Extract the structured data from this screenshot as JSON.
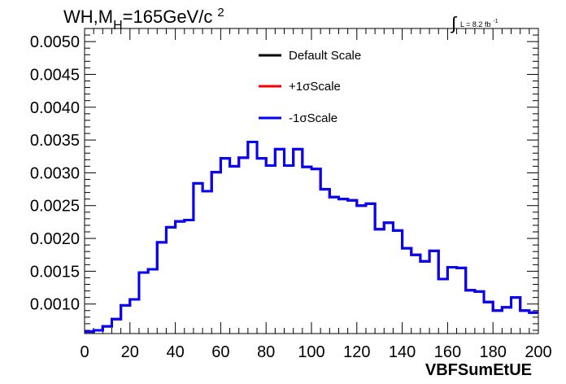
{
  "chart_data": {
    "type": "line",
    "title_main": "WH,M",
    "title_sub": "H",
    "title_tail": "=165GeV/c",
    "title_sup": "2",
    "lumi": {
      "integral": "∫",
      "text": "L = 8.2 fb",
      "sup": "-1"
    },
    "xlabel": "VBFSumEtUE",
    "ylabel": "",
    "xlim": [
      0,
      200
    ],
    "ylim": [
      0.00055,
      0.0052
    ],
    "xticks": [
      0,
      20,
      40,
      60,
      80,
      100,
      120,
      140,
      160,
      180,
      200
    ],
    "yticks": [
      0.001,
      0.0015,
      0.002,
      0.0025,
      0.003,
      0.0035,
      0.004,
      0.0045,
      0.005
    ],
    "ytick_labels": [
      "0.0010",
      "0.0015",
      "0.0020",
      "0.0025",
      "0.0030",
      "0.0035",
      "0.0040",
      "0.0045",
      "0.0050"
    ],
    "bin_width": 4,
    "series": [
      {
        "name": "Default Scale",
        "color": "#000000",
        "values": [
          0.00058,
          0.0006,
          0.00066,
          0.00077,
          0.00098,
          0.00107,
          0.00148,
          0.00153,
          0.00194,
          0.00217,
          0.00226,
          0.00228,
          0.00284,
          0.00272,
          0.00301,
          0.00322,
          0.0031,
          0.00323,
          0.00347,
          0.00322,
          0.00311,
          0.00336,
          0.00311,
          0.00336,
          0.00309,
          0.00306,
          0.00275,
          0.00263,
          0.0026,
          0.00258,
          0.0025,
          0.00253,
          0.00214,
          0.00224,
          0.00212,
          0.00185,
          0.00175,
          0.00165,
          0.00181,
          0.00138,
          0.00156,
          0.00155,
          0.00121,
          0.00119,
          0.00103,
          0.0009,
          0.00095,
          0.0011,
          0.0009,
          0.00087
        ]
      },
      {
        "name": "+1σScale",
        "color": "#ff0000",
        "values": [
          0.00058,
          0.0006,
          0.00066,
          0.00077,
          0.00098,
          0.00107,
          0.00148,
          0.00153,
          0.00194,
          0.00217,
          0.00226,
          0.00228,
          0.00284,
          0.00272,
          0.00301,
          0.00322,
          0.0031,
          0.00323,
          0.00347,
          0.00322,
          0.00311,
          0.00336,
          0.00311,
          0.00336,
          0.00309,
          0.00306,
          0.00275,
          0.00263,
          0.0026,
          0.00258,
          0.0025,
          0.00253,
          0.00214,
          0.00224,
          0.00212,
          0.00185,
          0.00175,
          0.00165,
          0.00181,
          0.00138,
          0.00156,
          0.00155,
          0.00121,
          0.00119,
          0.00103,
          0.0009,
          0.00095,
          0.0011,
          0.0009,
          0.00087
        ]
      },
      {
        "name": "-1σScale",
        "color": "#0000ff",
        "values": [
          0.00058,
          0.0006,
          0.00066,
          0.00077,
          0.00098,
          0.00107,
          0.00148,
          0.00153,
          0.00194,
          0.00217,
          0.00226,
          0.00228,
          0.00284,
          0.00272,
          0.00301,
          0.00322,
          0.0031,
          0.00323,
          0.00347,
          0.00322,
          0.00311,
          0.00336,
          0.00311,
          0.00336,
          0.00309,
          0.00306,
          0.00275,
          0.00263,
          0.0026,
          0.00258,
          0.0025,
          0.00253,
          0.00214,
          0.00224,
          0.00212,
          0.00185,
          0.00175,
          0.00165,
          0.00181,
          0.00138,
          0.00156,
          0.00155,
          0.00121,
          0.00119,
          0.00103,
          0.0009,
          0.00095,
          0.0011,
          0.0009,
          0.00087
        ]
      }
    ],
    "legend_placement": "top-center",
    "grid": false
  }
}
